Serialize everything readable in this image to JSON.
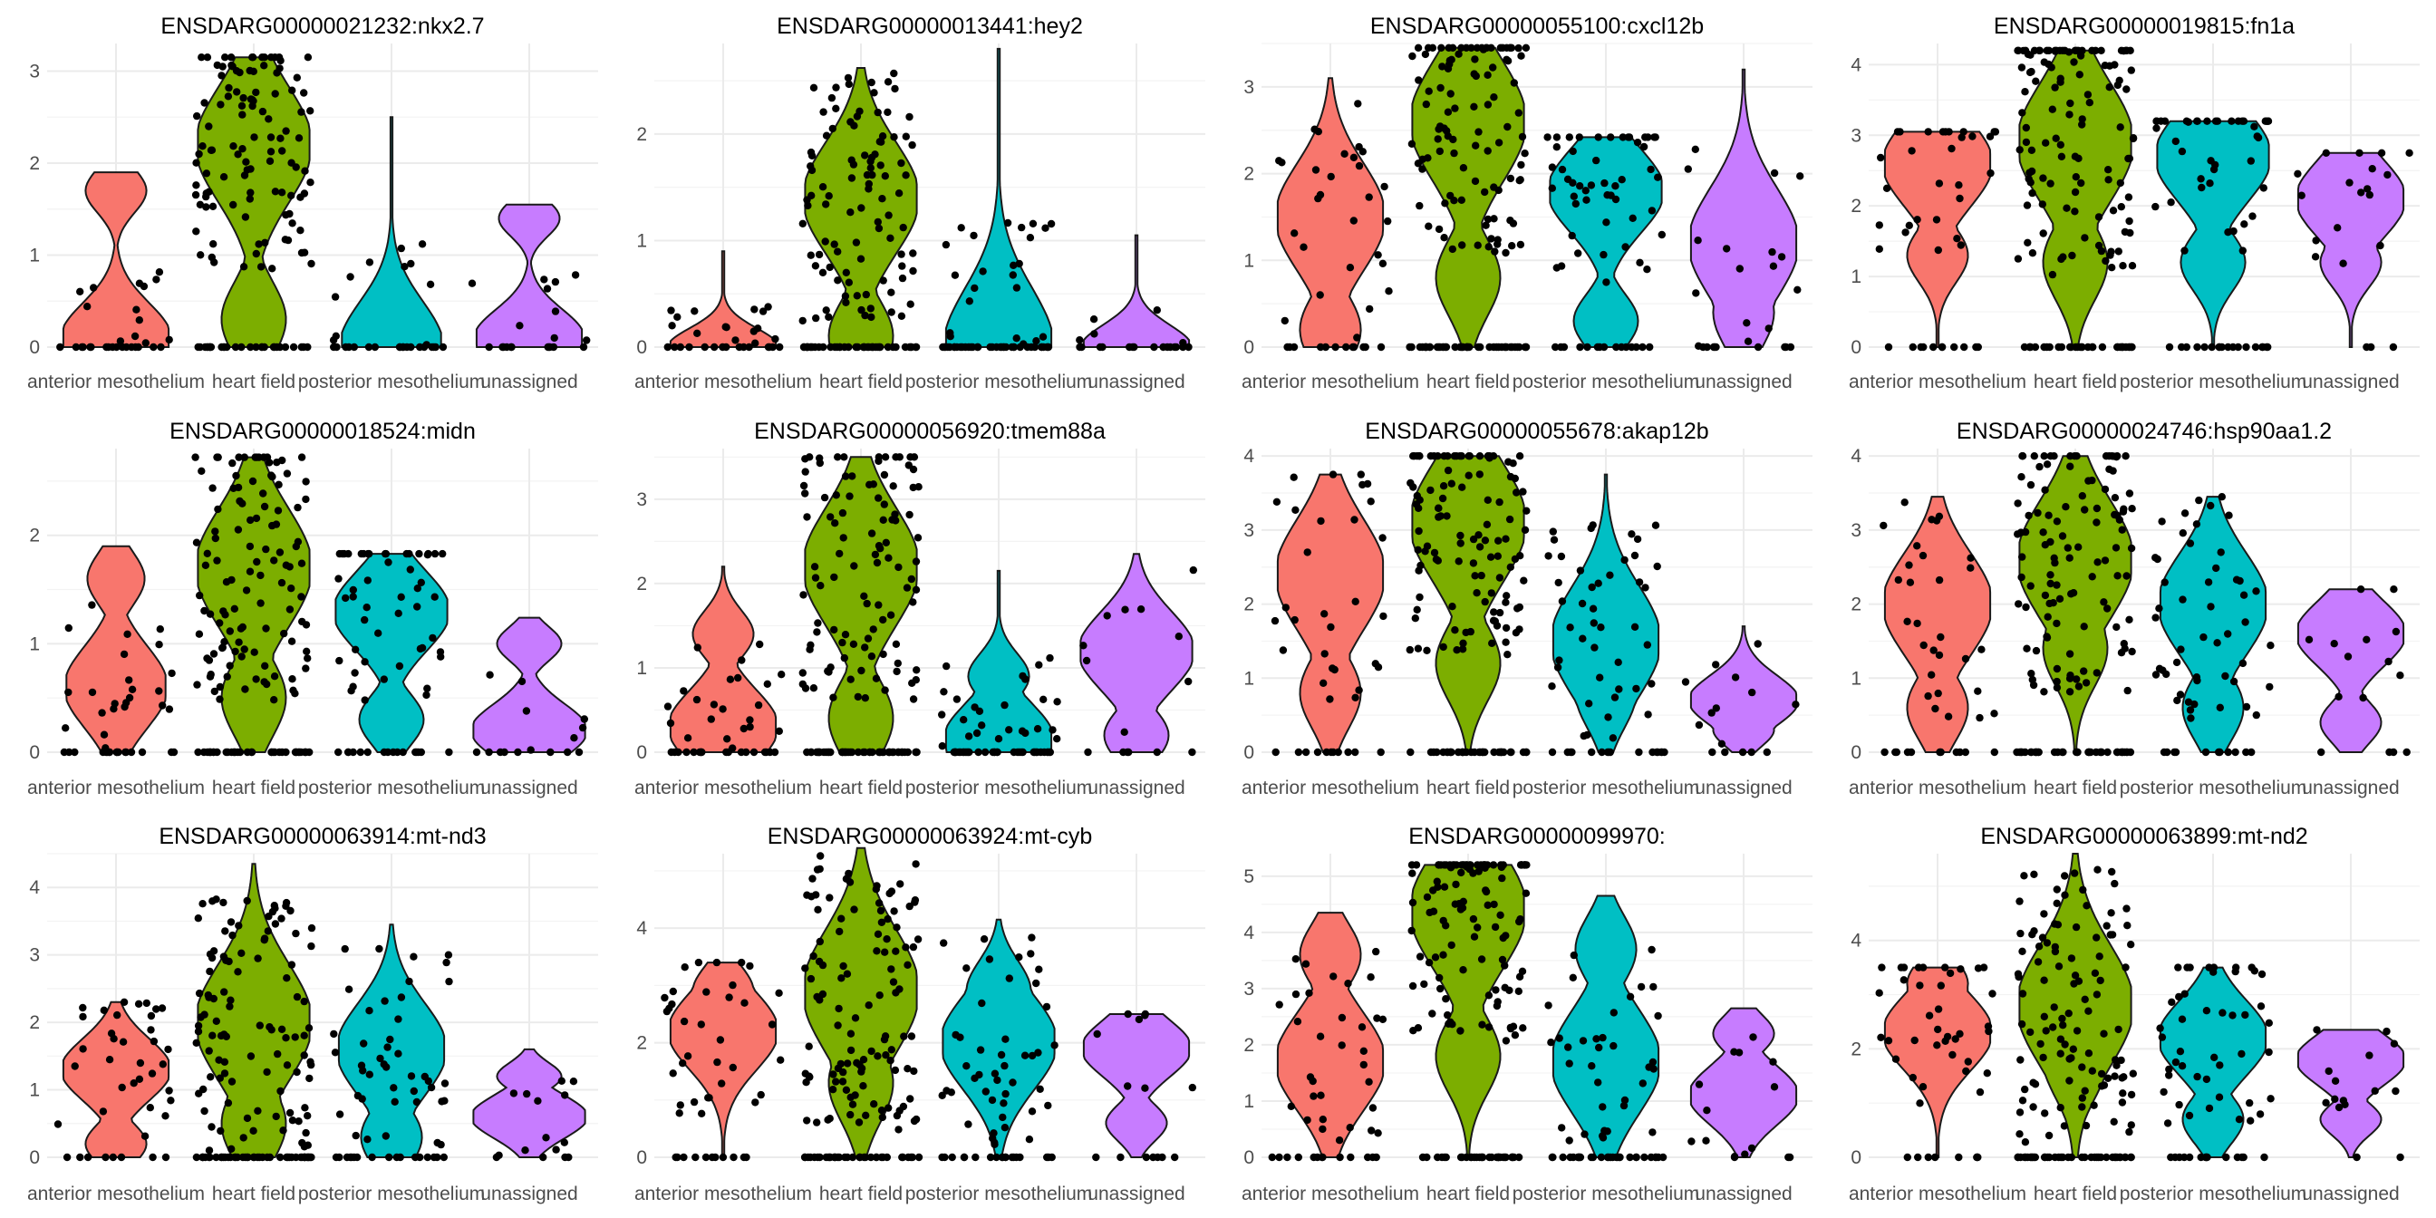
{
  "chart_data": {
    "type": "violin",
    "grid": true,
    "legend": "none",
    "categories": [
      "anterior mesothelium",
      "heart field",
      "posterior mesothelium",
      "unassigned"
    ],
    "colors": [
      "#F8766D",
      "#7CAE00",
      "#00BFC4",
      "#C77CFF"
    ],
    "panels": [
      {
        "title": "ENSDARG00000021232:nkx2.7",
        "ylim": [
          0,
          3.3
        ],
        "yticks": [
          0,
          1,
          2,
          3
        ],
        "violins": [
          {
            "max": 1.9,
            "peak": 0.1,
            "mode": 1.7,
            "width": 0.85,
            "n": 30
          },
          {
            "max": 3.15,
            "peak": 2.2,
            "mode": 0.3,
            "width": 0.9,
            "n": 140
          },
          {
            "max": 2.5,
            "peak": 0,
            "mode": 0,
            "width": 0.8,
            "n": 30
          },
          {
            "max": 1.55,
            "peak": 0.1,
            "mode": 1.4,
            "width": 0.85,
            "n": 20
          }
        ]
      },
      {
        "title": "ENSDARG00000013441:hey2",
        "ylim": [
          0,
          2.85
        ],
        "yticks": [
          0,
          1,
          2
        ],
        "violins": [
          {
            "max": 0.9,
            "peak": 0,
            "mode": 0,
            "width": 0.85,
            "n": 30
          },
          {
            "max": 2.62,
            "peak": 1.4,
            "mode": 0.1,
            "width": 0.9,
            "n": 140
          },
          {
            "max": 2.8,
            "peak": 0,
            "mode": 0,
            "width": 0.85,
            "n": 60
          },
          {
            "max": 1.05,
            "peak": 0,
            "mode": 0,
            "width": 0.85,
            "n": 20
          }
        ]
      },
      {
        "title": "ENSDARG00000055100:cxcl12b",
        "ylim": [
          0,
          3.5
        ],
        "yticks": [
          0,
          1,
          2,
          3
        ],
        "violins": [
          {
            "max": 3.1,
            "peak": 1.5,
            "mode": 0.2,
            "width": 0.85,
            "n": 40
          },
          {
            "max": 3.45,
            "peak": 2.6,
            "mode": 0.8,
            "width": 0.9,
            "n": 150
          },
          {
            "max": 2.42,
            "peak": 1.8,
            "mode": 0.3,
            "width": 0.9,
            "n": 65
          },
          {
            "max": 3.2,
            "peak": 1.2,
            "mode": 0.4,
            "width": 0.85,
            "n": 25
          }
        ]
      },
      {
        "title": "ENSDARG00000019815:fn1a",
        "ylim": [
          0,
          4.3
        ],
        "yticks": [
          0,
          1,
          2,
          3,
          4
        ],
        "violins": [
          {
            "max": 3.05,
            "peak": 2.6,
            "mode": 1.3,
            "width": 0.85,
            "n": 40
          },
          {
            "max": 4.2,
            "peak": 2.9,
            "mode": 1.2,
            "width": 0.9,
            "n": 150
          },
          {
            "max": 3.2,
            "peak": 2.7,
            "mode": 1.2,
            "width": 0.9,
            "n": 60
          },
          {
            "max": 2.75,
            "peak": 2.1,
            "mode": 1.2,
            "width": 0.85,
            "n": 20
          }
        ]
      },
      {
        "title": "ENSDARG00000018524:midn",
        "ylim": [
          0,
          2.8
        ],
        "yticks": [
          0,
          1,
          2
        ],
        "violins": [
          {
            "max": 1.9,
            "peak": 0.6,
            "mode": 1.6,
            "width": 0.8,
            "n": 40
          },
          {
            "max": 2.72,
            "peak": 1.7,
            "mode": 0.5,
            "width": 0.9,
            "n": 150
          },
          {
            "max": 1.83,
            "peak": 1.3,
            "mode": 0.3,
            "width": 0.9,
            "n": 65
          },
          {
            "max": 1.24,
            "peak": 0.2,
            "mode": 1,
            "width": 0.9,
            "n": 15
          }
        ]
      },
      {
        "title": "ENSDARG00000056920:tmem88a",
        "ylim": [
          0,
          3.6
        ],
        "yticks": [
          0,
          1,
          2,
          3
        ],
        "violins": [
          {
            "max": 2.2,
            "peak": 0.3,
            "mode": 1.4,
            "width": 0.85,
            "n": 40
          },
          {
            "max": 3.5,
            "peak": 2.2,
            "mode": 0.4,
            "width": 0.9,
            "n": 150
          },
          {
            "max": 2.15,
            "peak": 0.15,
            "mode": 0.9,
            "width": 0.85,
            "n": 60
          },
          {
            "max": 2.35,
            "peak": 1.2,
            "mode": 0.2,
            "width": 0.9,
            "n": 15
          }
        ]
      },
      {
        "title": "ENSDARG00000055678:akap12b",
        "ylim": [
          0,
          4.1
        ],
        "yticks": [
          0,
          1,
          2,
          3,
          4
        ],
        "violins": [
          {
            "max": 3.75,
            "peak": 2.4,
            "mode": 0.8,
            "width": 0.85,
            "n": 40
          },
          {
            "max": 4.0,
            "peak": 3.1,
            "mode": 1.2,
            "width": 0.9,
            "n": 150
          },
          {
            "max": 3.75,
            "peak": 1.5,
            "mode": 0.8,
            "width": 0.85,
            "n": 60
          },
          {
            "max": 1.7,
            "peak": 0.7,
            "mode": 0.3,
            "width": 0.85,
            "n": 15
          }
        ]
      },
      {
        "title": "ENSDARG00000024746:hsp90aa1.2",
        "ylim": [
          0,
          4.1
        ],
        "yticks": [
          0,
          1,
          2,
          3,
          4
        ],
        "violins": [
          {
            "max": 3.45,
            "peak": 2.0,
            "mode": 0.6,
            "width": 0.85,
            "n": 40
          },
          {
            "max": 4.0,
            "peak": 2.6,
            "mode": 1.4,
            "width": 0.9,
            "n": 150
          },
          {
            "max": 3.45,
            "peak": 2.0,
            "mode": 0.6,
            "width": 0.85,
            "n": 60
          },
          {
            "max": 2.2,
            "peak": 1.6,
            "mode": 0.4,
            "width": 0.85,
            "n": 15
          }
        ]
      },
      {
        "title": "ENSDARG00000063914:mt-nd3",
        "ylim": [
          0,
          4.5
        ],
        "yticks": [
          0,
          1,
          2,
          3,
          4
        ],
        "violins": [
          {
            "max": 2.3,
            "peak": 1.3,
            "mode": 0.2,
            "width": 0.85,
            "n": 40
          },
          {
            "max": 4.35,
            "peak": 2.0,
            "mode": 0.5,
            "width": 0.9,
            "n": 150
          },
          {
            "max": 3.45,
            "peak": 1.6,
            "mode": 0.3,
            "width": 0.85,
            "n": 60
          },
          {
            "max": 1.6,
            "peak": 0.6,
            "mode": 1.2,
            "width": 0.9,
            "n": 15
          }
        ]
      },
      {
        "title": "ENSDARG00000063924:mt-cyb",
        "ylim": [
          0,
          5.3
        ],
        "yticks": [
          0,
          2,
          4
        ],
        "violins": [
          {
            "max": 3.4,
            "peak": 2.2,
            "mode": 2.9,
            "width": 0.85,
            "n": 45
          },
          {
            "max": 5.4,
            "peak": 2.9,
            "mode": 1.3,
            "width": 0.9,
            "n": 150
          },
          {
            "max": 4.15,
            "peak": 2.0,
            "mode": 2.9,
            "width": 0.9,
            "n": 65
          },
          {
            "max": 2.5,
            "peak": 1.9,
            "mode": 0.6,
            "width": 0.85,
            "n": 15
          }
        ]
      },
      {
        "title": "ENSDARG00000099970:",
        "ylim": [
          0,
          5.4
        ],
        "yticks": [
          0,
          1,
          2,
          3,
          4,
          5
        ],
        "violins": [
          {
            "max": 4.35,
            "peak": 1.7,
            "mode": 3.6,
            "width": 0.85,
            "n": 45
          },
          {
            "max": 5.2,
            "peak": 4.4,
            "mode": 1.8,
            "width": 0.9,
            "n": 150
          },
          {
            "max": 4.65,
            "peak": 1.7,
            "mode": 3.7,
            "width": 0.85,
            "n": 65
          },
          {
            "max": 2.65,
            "peak": 1.1,
            "mode": 2.2,
            "width": 0.85,
            "n": 15
          }
        ]
      },
      {
        "title": "ENSDARG00000063899:mt-nd2",
        "ylim": [
          0,
          5.6
        ],
        "yticks": [
          0,
          2,
          4
        ],
        "violins": [
          {
            "max": 3.5,
            "peak": 2.3,
            "mode": 3.2,
            "width": 0.85,
            "n": 45
          },
          {
            "max": 5.6,
            "peak": 2.8,
            "mode": 1.8,
            "width": 0.9,
            "n": 150
          },
          {
            "max": 3.5,
            "peak": 2.2,
            "mode": 0.7,
            "width": 0.85,
            "n": 60
          },
          {
            "max": 2.35,
            "peak": 1.8,
            "mode": 0.7,
            "width": 0.85,
            "n": 15
          }
        ]
      }
    ]
  }
}
